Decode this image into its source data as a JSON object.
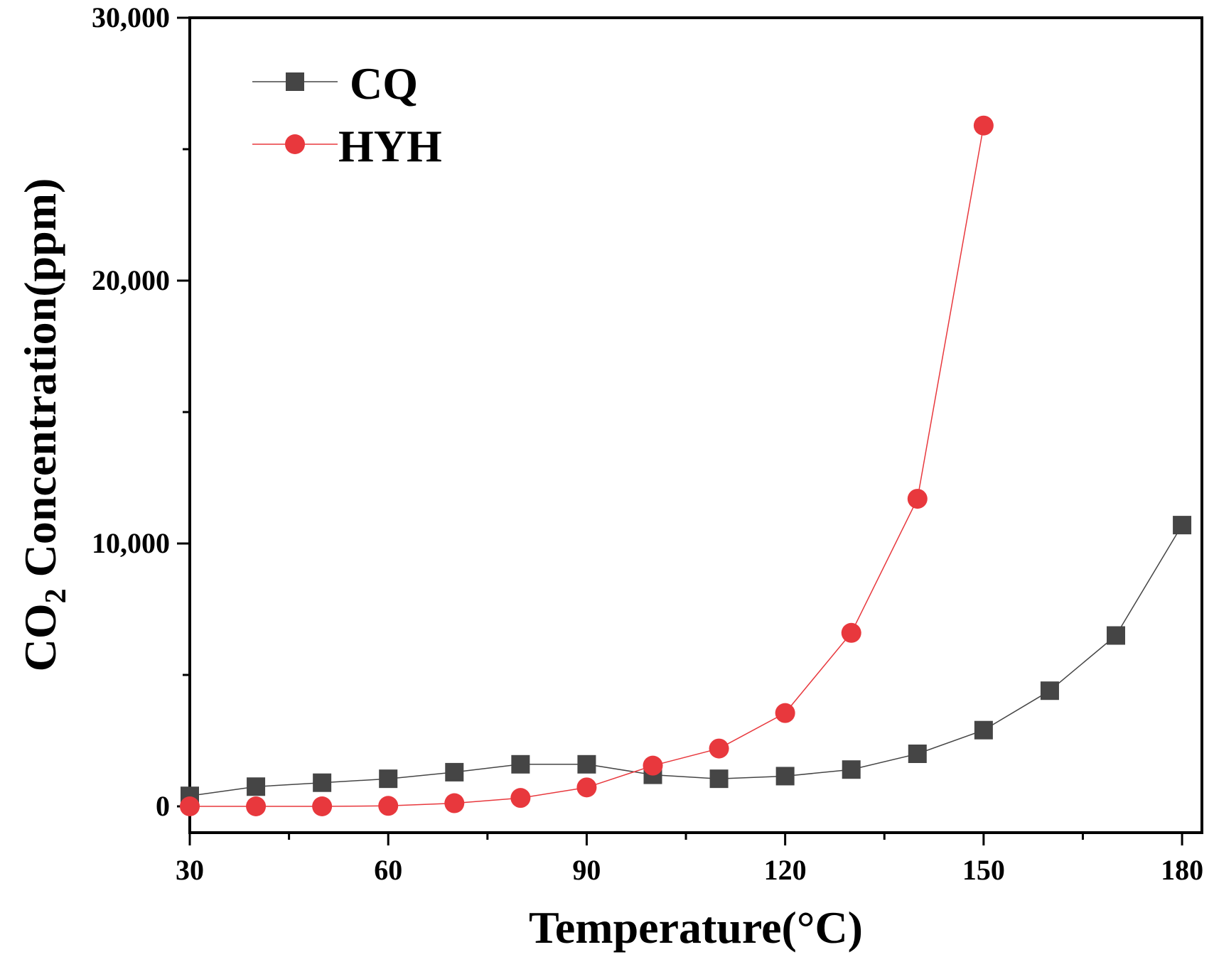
{
  "chart_data": {
    "type": "line",
    "title": "",
    "xlabel": "Temperature(°C)",
    "ylabel": {
      "prefix": "CO",
      "subscript": "2",
      "suffix": " Concentration(ppm)"
    },
    "xlim": [
      30,
      183
    ],
    "ylim": [
      -1000,
      30000
    ],
    "xticks": [
      30,
      60,
      90,
      120,
      150,
      180
    ],
    "xtick_labels": [
      "30",
      "60",
      "90",
      "120",
      "150",
      "180"
    ],
    "xminor_ticks": [
      45,
      75,
      105,
      135,
      165
    ],
    "yticks": [
      0,
      10000,
      20000,
      30000
    ],
    "ytick_labels": [
      "0",
      "10,000",
      "20,000",
      "30,000"
    ],
    "yminor_ticks": [
      5000,
      15000,
      25000
    ],
    "grid": false,
    "legend_position": "top-left",
    "series": [
      {
        "name": "CQ",
        "color": "#454545",
        "marker": "square",
        "x": [
          30,
          40,
          50,
          60,
          70,
          80,
          90,
          100,
          110,
          120,
          130,
          140,
          150,
          160,
          170,
          180
        ],
        "y": [
          400,
          750,
          900,
          1050,
          1300,
          1600,
          1600,
          1200,
          1050,
          1150,
          1400,
          2000,
          2900,
          4400,
          6500,
          10700
        ]
      },
      {
        "name": "HYH",
        "color": "#e8383d",
        "marker": "circle",
        "x": [
          30,
          40,
          50,
          60,
          70,
          80,
          90,
          100,
          110,
          120,
          130,
          140,
          150
        ],
        "y": [
          0,
          0,
          0,
          20,
          120,
          320,
          720,
          1550,
          2200,
          3550,
          6600,
          11700,
          25900
        ]
      }
    ]
  }
}
